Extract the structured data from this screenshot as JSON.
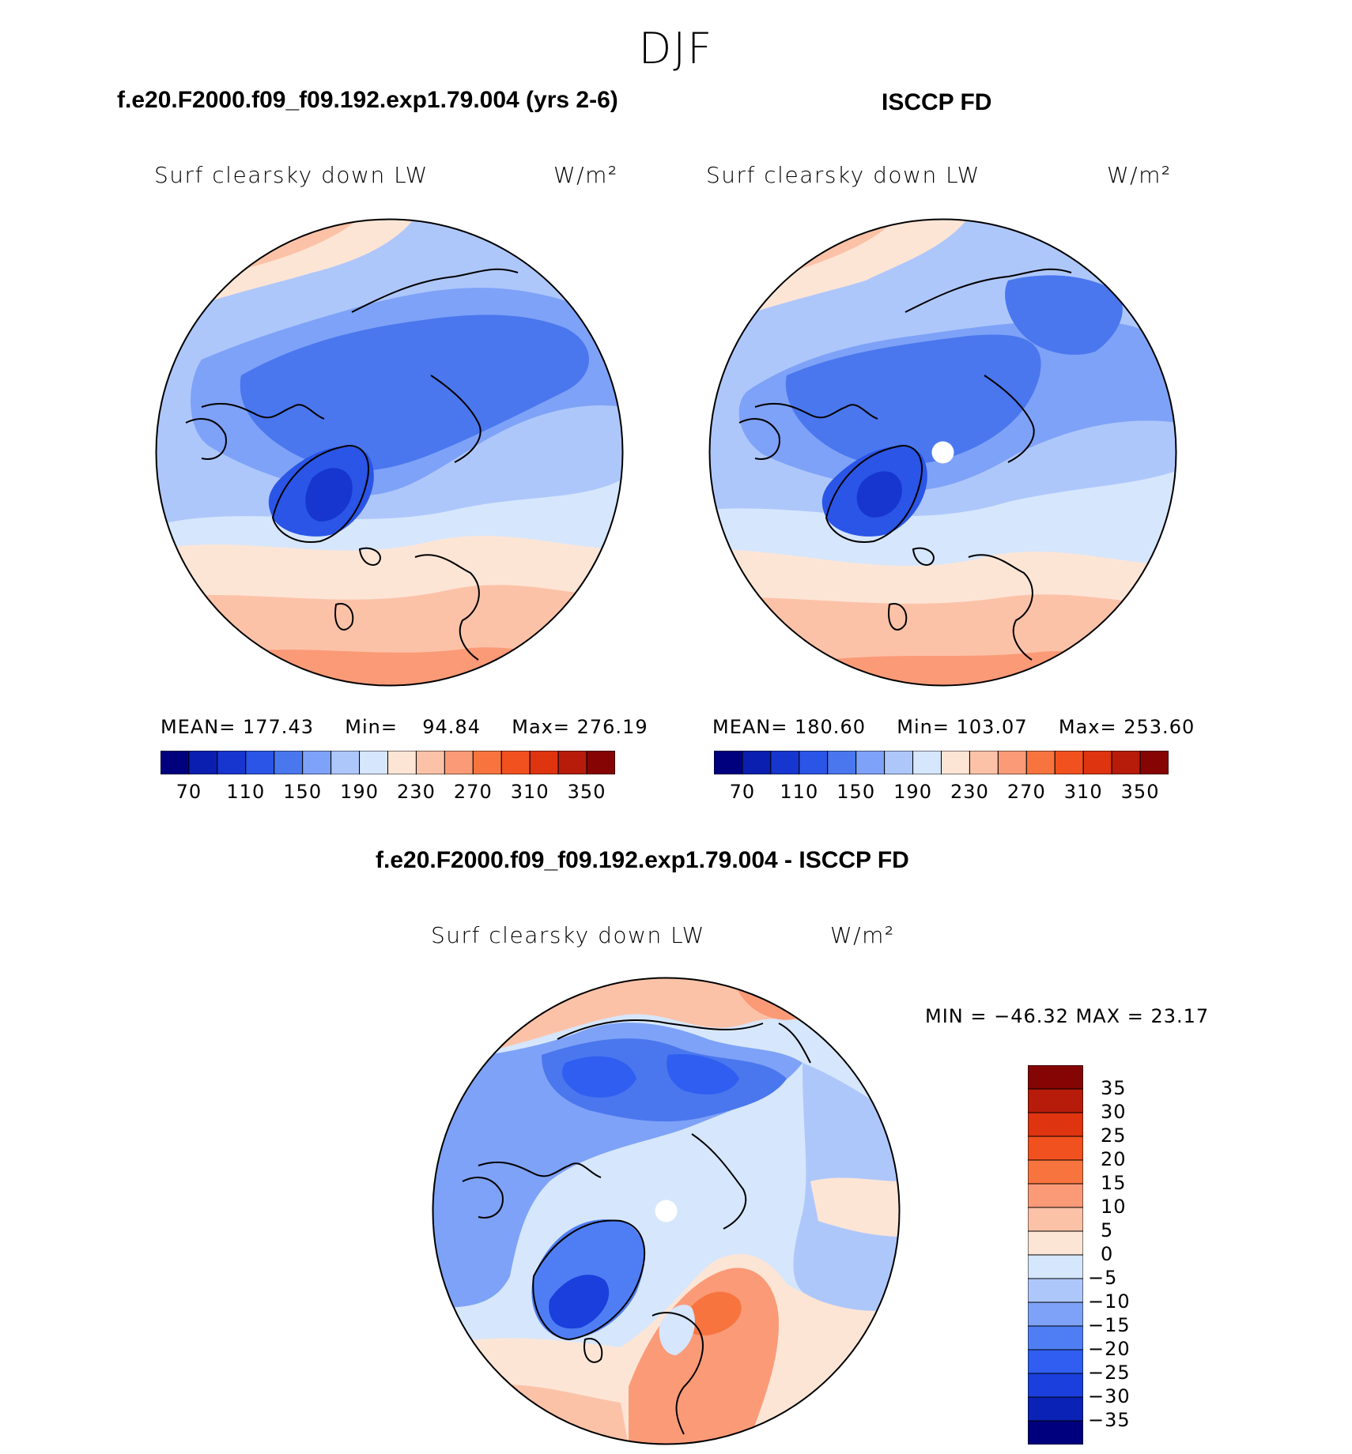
{
  "season": "DJF",
  "colors": {
    "seq": [
      "#00007f",
      "#0a1fb0",
      "#1736cf",
      "#2a55e6",
      "#4a77ee",
      "#7ea2f7",
      "#aec7fb",
      "#d6e6fc",
      "#fde5d6",
      "#fcc2a8",
      "#fb9a77",
      "#f8743f",
      "#f1511e",
      "#de3410",
      "#b71c0a",
      "#850404"
    ],
    "div": [
      "#00007f",
      "#0a22b5",
      "#1a3fdc",
      "#2f5ef0",
      "#4f7ef4",
      "#7ea2f7",
      "#aec7fb",
      "#d6e6fc",
      "#fde5d6",
      "#fcc2a8",
      "#fb9a77",
      "#f8743f",
      "#f1511e",
      "#de3410",
      "#b71c0a",
      "#850404"
    ]
  },
  "panels": {
    "model": {
      "title": "f.e20.F2000.f09_f09.192.exp1.79.004 (yrs 2-6)",
      "variable": "Surf clearsky down LW",
      "units": "W/m²",
      "mean_label": "MEAN=",
      "mean": "177.43",
      "min_label": "Min=",
      "min": "94.84",
      "max_label": "Max=",
      "max": "276.19",
      "colorbar_ticks": [
        "70",
        "110",
        "150",
        "190",
        "230",
        "270",
        "310",
        "350"
      ]
    },
    "obs": {
      "title": "ISCCP FD",
      "variable": "Surf clearsky down LW",
      "units": "W/m²",
      "mean_label": "MEAN=",
      "mean": "180.60",
      "min_label": "Min=",
      "min": "103.07",
      "max_label": "Max=",
      "max": "253.60",
      "colorbar_ticks": [
        "70",
        "110",
        "150",
        "190",
        "230",
        "270",
        "310",
        "350"
      ]
    },
    "diff": {
      "title": "f.e20.F2000.f09_f09.192.exp1.79.004 - ISCCP FD",
      "variable": "Surf clearsky down LW",
      "units": "W/m²",
      "minmax": "MIN = −46.32 MAX =  23.17",
      "colorbar_ticks": [
        "35",
        "30",
        "25",
        "20",
        "15",
        "10",
        "5",
        "0",
        "−5",
        "−10",
        "−15",
        "−20",
        "−25",
        "−30",
        "−35"
      ]
    }
  }
}
